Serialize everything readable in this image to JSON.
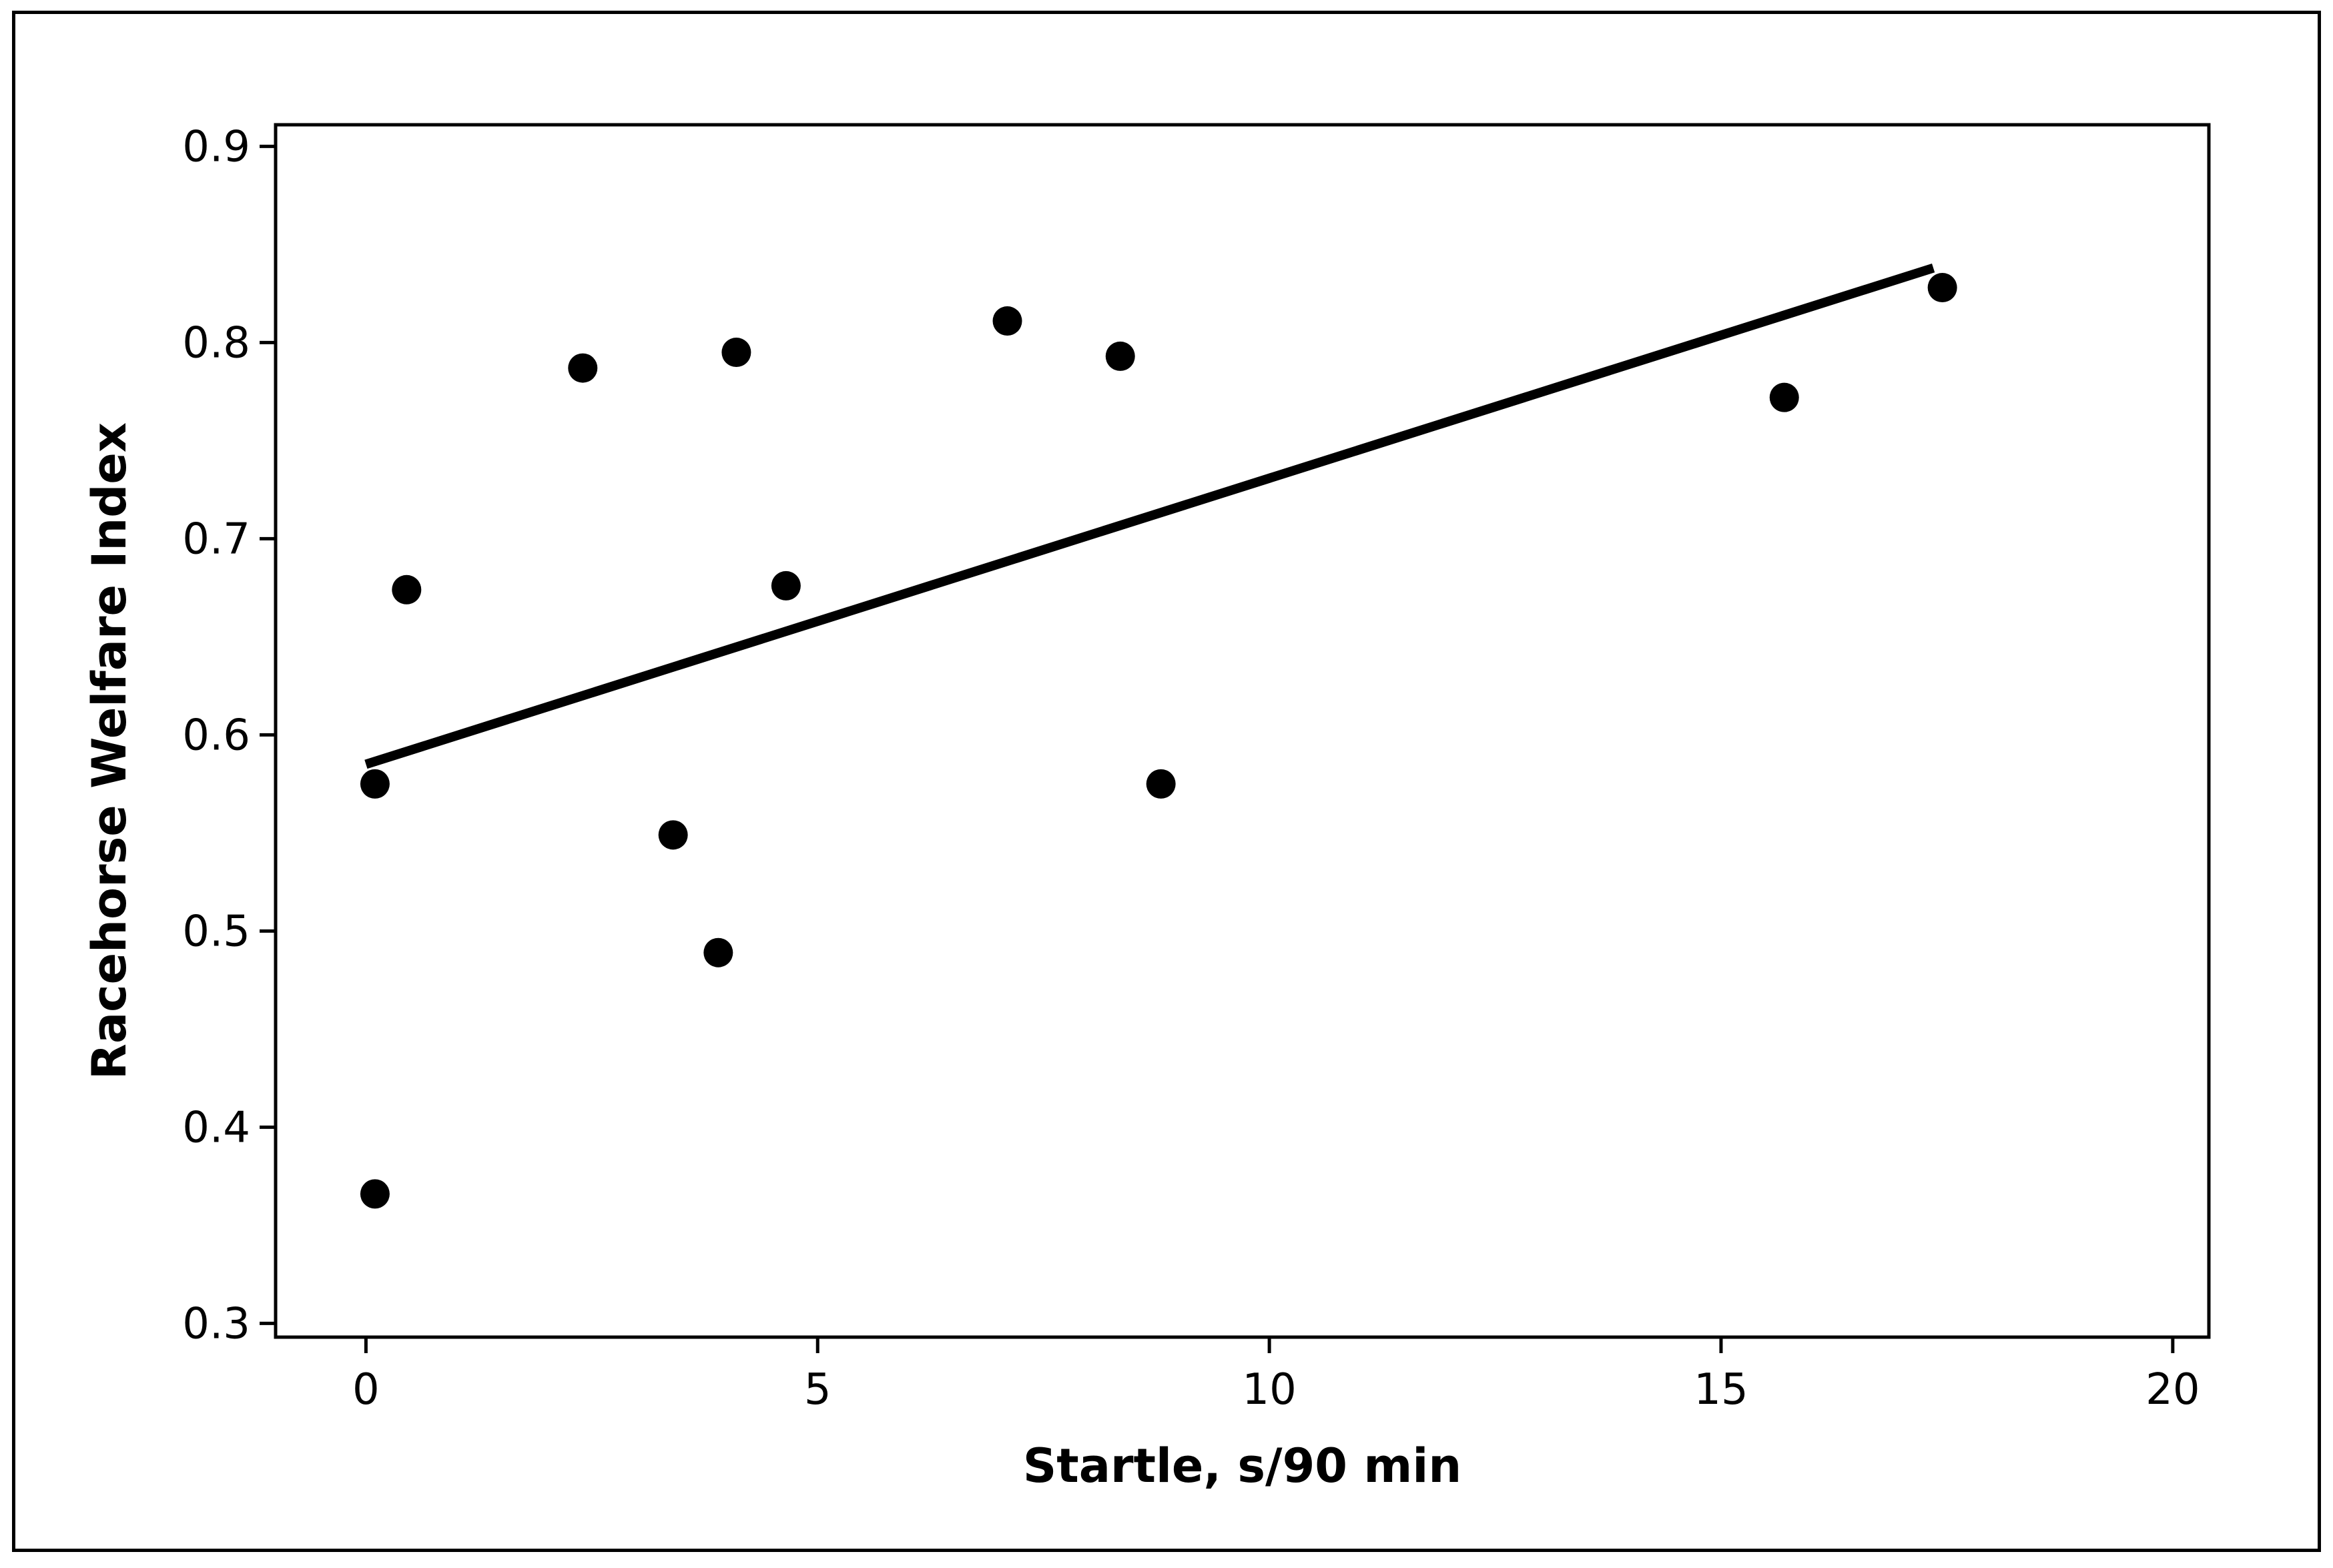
{
  "chart_data": {
    "type": "scatter",
    "xlabel": "Startle, s/90 min",
    "ylabel": "Racehorse Welfare Index",
    "xlim": [
      -1,
      20.4
    ],
    "ylim": [
      0.293,
      0.911
    ],
    "x_ticks": [
      0,
      5,
      10,
      15,
      20
    ],
    "y_ticks": [
      0.3,
      0.4,
      0.5,
      0.6,
      0.7,
      0.8,
      0.9
    ],
    "x_tick_labels": [
      "0",
      "5",
      "10",
      "15",
      "20"
    ],
    "y_tick_labels": [
      "0.3",
      "0.4",
      "0.5",
      "0.6",
      "0.7",
      "0.8",
      "0.9"
    ],
    "grid": false,
    "colors": {
      "points": "#000000",
      "fit_line": "#000000",
      "frame": "#000000"
    },
    "points": [
      {
        "x": 0.1,
        "y": 0.366
      },
      {
        "x": 0.1,
        "y": 0.575
      },
      {
        "x": 0.45,
        "y": 0.674
      },
      {
        "x": 2.4,
        "y": 0.787
      },
      {
        "x": 3.4,
        "y": 0.549
      },
      {
        "x": 3.9,
        "y": 0.489
      },
      {
        "x": 4.1,
        "y": 0.795
      },
      {
        "x": 4.65,
        "y": 0.676
      },
      {
        "x": 7.1,
        "y": 0.811
      },
      {
        "x": 8.35,
        "y": 0.793
      },
      {
        "x": 8.8,
        "y": 0.575
      },
      {
        "x": 15.7,
        "y": 0.772
      },
      {
        "x": 17.45,
        "y": 0.828
      }
    ],
    "fit_line": {
      "x1": 0.0,
      "y1": 0.585,
      "x2": 17.35,
      "y2": 0.838
    }
  }
}
